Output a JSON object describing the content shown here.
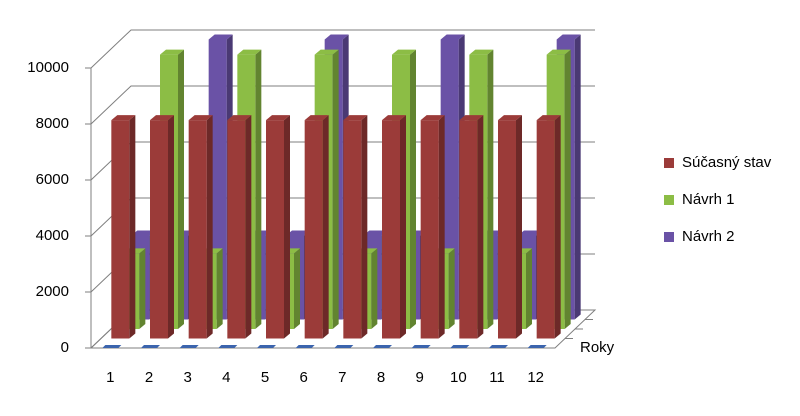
{
  "chart_data": {
    "type": "bar3d",
    "categories": [
      "1",
      "2",
      "3",
      "4",
      "5",
      "6",
      "7",
      "8",
      "9",
      "10",
      "11",
      "12"
    ],
    "series": [
      {
        "name": "Súčasný stav",
        "color": "#9b3b39",
        "values": [
          7800,
          7800,
          7800,
          7800,
          7800,
          7800,
          7800,
          7800,
          7800,
          7800,
          7800,
          7800
        ]
      },
      {
        "name": "Návrh 1",
        "color": "#8cbd45",
        "values": [
          2700,
          9800,
          2700,
          9800,
          2700,
          9800,
          2700,
          9800,
          2700,
          9800,
          2700,
          9800
        ]
      },
      {
        "name": "Návrh 2",
        "color": "#6a52a6",
        "values": [
          3000,
          3000,
          10000,
          3000,
          3000,
          10000,
          3000,
          3000,
          10000,
          3000,
          3000,
          10000
        ]
      }
    ],
    "ylim": [
      0,
      10000
    ],
    "yticks": [
      0,
      2000,
      4000,
      6000,
      8000,
      10000
    ],
    "z_label": "Roky",
    "grid": true,
    "legend": "right"
  }
}
